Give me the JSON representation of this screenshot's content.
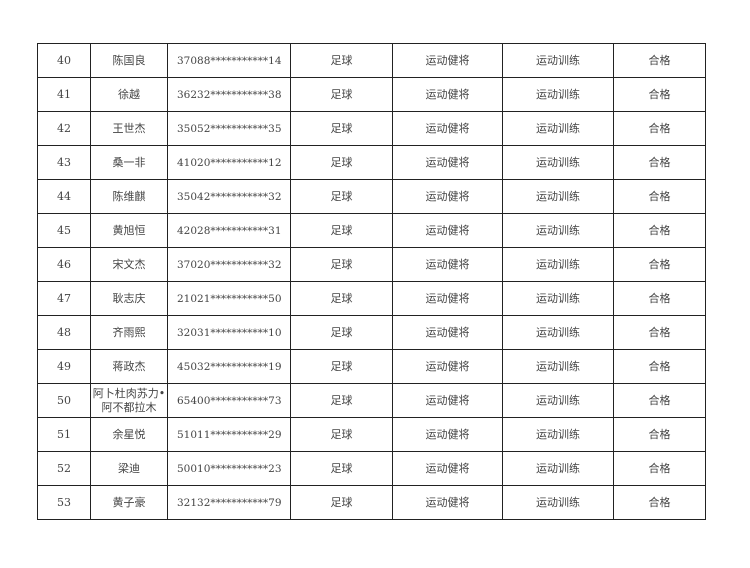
{
  "rows": [
    {
      "no": "40",
      "name": "陈国良",
      "id": "37088***********14",
      "sport": "足球",
      "level": "运动健将",
      "type": "运动训练",
      "result": "合格"
    },
    {
      "no": "41",
      "name": "徐越",
      "id": "36232***********38",
      "sport": "足球",
      "level": "运动健将",
      "type": "运动训练",
      "result": "合格"
    },
    {
      "no": "42",
      "name": "王世杰",
      "id": "35052***********35",
      "sport": "足球",
      "level": "运动健将",
      "type": "运动训练",
      "result": "合格"
    },
    {
      "no": "43",
      "name": "桑一非",
      "id": "41020***********12",
      "sport": "足球",
      "level": "运动健将",
      "type": "运动训练",
      "result": "合格"
    },
    {
      "no": "44",
      "name": "陈维麒",
      "id": "35042***********32",
      "sport": "足球",
      "level": "运动健将",
      "type": "运动训练",
      "result": "合格"
    },
    {
      "no": "45",
      "name": "黄旭恒",
      "id": "42028***********31",
      "sport": "足球",
      "level": "运动健将",
      "type": "运动训练",
      "result": "合格"
    },
    {
      "no": "46",
      "name": "宋文杰",
      "id": "37020***********32",
      "sport": "足球",
      "level": "运动健将",
      "type": "运动训练",
      "result": "合格"
    },
    {
      "no": "47",
      "name": "耿志庆",
      "id": "21021***********50",
      "sport": "足球",
      "level": "运动健将",
      "type": "运动训练",
      "result": "合格"
    },
    {
      "no": "48",
      "name": "齐雨熙",
      "id": "32031***********10",
      "sport": "足球",
      "level": "运动健将",
      "type": "运动训练",
      "result": "合格"
    },
    {
      "no": "49",
      "name": "蒋政杰",
      "id": "45032***********19",
      "sport": "足球",
      "level": "运动健将",
      "type": "运动训练",
      "result": "合格"
    },
    {
      "no": "50",
      "name": "阿卜杜肉苏力•阿不都拉木",
      "id": "65400***********73",
      "sport": "足球",
      "level": "运动健将",
      "type": "运动训练",
      "result": "合格"
    },
    {
      "no": "51",
      "name": "余星悦",
      "id": "51011***********29",
      "sport": "足球",
      "level": "运动健将",
      "type": "运动训练",
      "result": "合格"
    },
    {
      "no": "52",
      "name": "梁迪",
      "id": "50010***********23",
      "sport": "足球",
      "level": "运动健将",
      "type": "运动训练",
      "result": "合格"
    },
    {
      "no": "53",
      "name": "黄子豪",
      "id": "32132***********79",
      "sport": "足球",
      "level": "运动健将",
      "type": "运动训练",
      "result": "合格"
    }
  ]
}
